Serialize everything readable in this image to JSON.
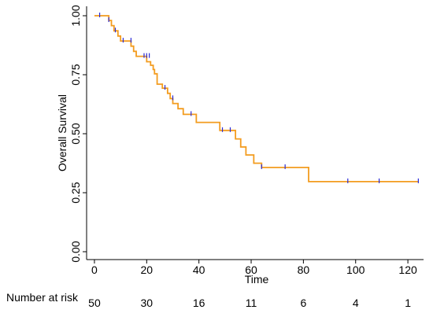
{
  "chart_data": {
    "type": "line",
    "title": "",
    "xlabel": "Time",
    "ylabel": "Overall Survival",
    "xlim": [
      -3,
      126
    ],
    "ylim": [
      0,
      1
    ],
    "x_ticks": [
      0,
      20,
      40,
      60,
      80,
      100,
      120
    ],
    "y_ticks": [
      "0.00",
      "0.25",
      "0.50",
      "0.75",
      "1.00"
    ],
    "grid": false,
    "colors": {
      "curve": "#f39c1f",
      "censor": "#2a2ad6"
    },
    "series": [
      {
        "steps": [
          [
            0,
            1.0
          ],
          [
            5.5,
            0.98
          ],
          [
            6.5,
            0.958
          ],
          [
            7.5,
            0.936
          ],
          [
            9,
            0.914
          ],
          [
            10,
            0.893
          ],
          [
            14,
            0.871
          ],
          [
            15,
            0.849
          ],
          [
            16,
            0.828
          ],
          [
            20,
            0.805
          ],
          [
            21.5,
            0.79
          ],
          [
            22.5,
            0.772
          ],
          [
            23,
            0.754
          ],
          [
            24,
            0.71
          ],
          [
            26,
            0.693
          ],
          [
            28,
            0.671
          ],
          [
            29,
            0.649
          ],
          [
            30,
            0.628
          ],
          [
            32,
            0.606
          ],
          [
            34,
            0.582
          ],
          [
            39,
            0.548
          ],
          [
            48,
            0.514
          ],
          [
            54,
            0.478
          ],
          [
            56,
            0.444
          ],
          [
            58,
            0.41
          ],
          [
            61,
            0.375
          ],
          [
            64,
            0.357
          ],
          [
            82,
            0.297
          ],
          [
            124,
            0.297
          ]
        ],
        "censored": [
          [
            2,
            1.0
          ],
          [
            5.5,
            0.98
          ],
          [
            8,
            0.936
          ],
          [
            11,
            0.893
          ],
          [
            14,
            0.893
          ],
          [
            19,
            0.828
          ],
          [
            20,
            0.828
          ],
          [
            21,
            0.828
          ],
          [
            27,
            0.693
          ],
          [
            30,
            0.649
          ],
          [
            37,
            0.582
          ],
          [
            49,
            0.514
          ],
          [
            52,
            0.514
          ],
          [
            64,
            0.357
          ],
          [
            73,
            0.357
          ],
          [
            97,
            0.297
          ],
          [
            109,
            0.297
          ],
          [
            124,
            0.297
          ]
        ]
      }
    ],
    "risk_table": {
      "label": "Number at risk",
      "times": [
        0,
        20,
        40,
        60,
        80,
        100,
        120
      ],
      "counts": [
        "50",
        "30",
        "16",
        "11",
        "6",
        "4",
        "1"
      ]
    }
  }
}
